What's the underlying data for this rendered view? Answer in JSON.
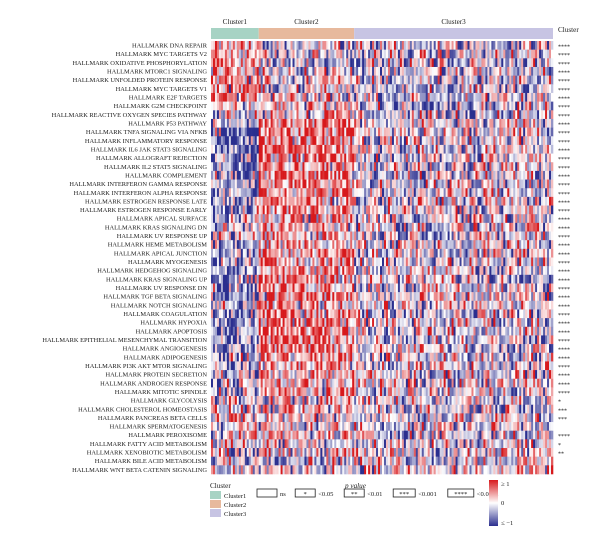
{
  "chart_data": {
    "type": "heatmap",
    "title": "",
    "clusters": [
      {
        "name": "Cluster1",
        "color": "#a7d3c4",
        "samples": 24
      },
      {
        "name": "Cluster2",
        "color": "#e7b99d",
        "samples": 48
      },
      {
        "name": "Cluster3",
        "color": "#c7c4e3",
        "samples": 100
      }
    ],
    "rows": [
      {
        "pathway": "HALLMARK DNA REPAIR",
        "sig": "****",
        "pattern": [
          0.45,
          -0.15,
          -0.15
        ]
      },
      {
        "pathway": "HALLMARK MYC TARGETS V2",
        "sig": "****",
        "pattern": [
          0.45,
          -0.1,
          -0.15
        ]
      },
      {
        "pathway": "HALLMARK OXIDATIVE PHOSPHORYLATION",
        "sig": "****",
        "pattern": [
          0.5,
          -0.2,
          -0.15
        ]
      },
      {
        "pathway": "HALLMARK MTORC1 SIGNALING",
        "sig": "****",
        "pattern": [
          0.3,
          0.1,
          -0.15
        ]
      },
      {
        "pathway": "HALLMARK UNFOLDED PROTEIN RESPONSE",
        "sig": "****",
        "pattern": [
          0.35,
          0.05,
          -0.15
        ]
      },
      {
        "pathway": "HALLMARK MYC TARGETS V1",
        "sig": "****",
        "pattern": [
          0.4,
          -0.05,
          -0.15
        ]
      },
      {
        "pathway": "HALLMARK E2F TARGETS",
        "sig": "****",
        "pattern": [
          0.35,
          0.05,
          -0.15
        ]
      },
      {
        "pathway": "HALLMARK G2M CHECKPOINT",
        "sig": "****",
        "pattern": [
          0.3,
          0.05,
          -0.15
        ]
      },
      {
        "pathway": "HALLMARK REACTIVE OXYGEN SPECIES PATHWAY",
        "sig": "****",
        "pattern": [
          0.1,
          0.25,
          -0.15
        ]
      },
      {
        "pathway": "HALLMARK P53 PATHWAY",
        "sig": "****",
        "pattern": [
          -0.3,
          0.45,
          -0.1
        ]
      },
      {
        "pathway": "HALLMARK TNFA SIGNALING VIA NFKB",
        "sig": "****",
        "pattern": [
          -0.55,
          0.6,
          -0.05
        ]
      },
      {
        "pathway": "HALLMARK INFLAMMATORY RESPONSE",
        "sig": "****",
        "pattern": [
          -0.6,
          0.65,
          -0.05
        ]
      },
      {
        "pathway": "HALLMARK IL6 JAK STAT3 SIGNALING",
        "sig": "****",
        "pattern": [
          -0.55,
          0.6,
          -0.05
        ]
      },
      {
        "pathway": "HALLMARK ALLOGRAFT REJECTION",
        "sig": "****",
        "pattern": [
          -0.5,
          0.55,
          -0.05
        ]
      },
      {
        "pathway": "HALLMARK IL2 STAT5 SIGNALING",
        "sig": "****",
        "pattern": [
          -0.5,
          0.55,
          -0.05
        ]
      },
      {
        "pathway": "HALLMARK COMPLEMENT",
        "sig": "****",
        "pattern": [
          -0.5,
          0.55,
          -0.05
        ]
      },
      {
        "pathway": "HALLMARK INTERFERON GAMMA RESPONSE",
        "sig": "****",
        "pattern": [
          -0.45,
          0.5,
          -0.05
        ]
      },
      {
        "pathway": "HALLMARK INTERFERON ALPHA RESPONSE",
        "sig": "****",
        "pattern": [
          -0.35,
          0.45,
          -0.05
        ]
      },
      {
        "pathway": "HALLMARK ESTROGEN RESPONSE LATE",
        "sig": "****",
        "pattern": [
          -0.3,
          0.4,
          -0.05
        ]
      },
      {
        "pathway": "HALLMARK ESTROGEN RESPONSE EARLY",
        "sig": "****",
        "pattern": [
          -0.35,
          0.4,
          -0.05
        ]
      },
      {
        "pathway": "HALLMARK APICAL SURFACE",
        "sig": "****",
        "pattern": [
          -0.3,
          0.35,
          -0.05
        ]
      },
      {
        "pathway": "HALLMARK KRAS SIGNALING DN",
        "sig": "****",
        "pattern": [
          -0.2,
          0.3,
          -0.05
        ]
      },
      {
        "pathway": "HALLMARK UV RESPONSE UP",
        "sig": "****",
        "pattern": [
          -0.1,
          0.35,
          -0.1
        ]
      },
      {
        "pathway": "HALLMARK HEME METABOLISM",
        "sig": "****",
        "pattern": [
          -0.3,
          0.35,
          -0.05
        ]
      },
      {
        "pathway": "HALLMARK APICAL JUNCTION",
        "sig": "****",
        "pattern": [
          -0.4,
          0.5,
          -0.05
        ]
      },
      {
        "pathway": "HALLMARK MYOGENESIS",
        "sig": "****",
        "pattern": [
          -0.35,
          0.45,
          -0.05
        ]
      },
      {
        "pathway": "HALLMARK HEDGEHOG SIGNALING",
        "sig": "****",
        "pattern": [
          -0.3,
          0.4,
          -0.05
        ]
      },
      {
        "pathway": "HALLMARK KRAS SIGNALING UP",
        "sig": "****",
        "pattern": [
          -0.5,
          0.55,
          -0.05
        ]
      },
      {
        "pathway": "HALLMARK UV RESPONSE DN",
        "sig": "****",
        "pattern": [
          -0.45,
          0.5,
          -0.05
        ]
      },
      {
        "pathway": "HALLMARK TGF BETA SIGNALING",
        "sig": "****",
        "pattern": [
          -0.4,
          0.5,
          -0.05
        ]
      },
      {
        "pathway": "HALLMARK NOTCH SIGNALING",
        "sig": "****",
        "pattern": [
          -0.3,
          0.4,
          -0.05
        ]
      },
      {
        "pathway": "HALLMARK COAGULATION",
        "sig": "****",
        "pattern": [
          -0.5,
          0.55,
          -0.05
        ]
      },
      {
        "pathway": "HALLMARK HYPOXIA",
        "sig": "****",
        "pattern": [
          -0.45,
          0.55,
          -0.05
        ]
      },
      {
        "pathway": "HALLMARK APOPTOSIS",
        "sig": "****",
        "pattern": [
          -0.45,
          0.55,
          -0.05
        ]
      },
      {
        "pathway": "HALLMARK EPITHELIAL MESENCHYMAL TRANSITION",
        "sig": "****",
        "pattern": [
          -0.55,
          0.6,
          -0.05
        ]
      },
      {
        "pathway": "HALLMARK ANGIOGENESIS",
        "sig": "****",
        "pattern": [
          -0.5,
          0.55,
          -0.05
        ]
      },
      {
        "pathway": "HALLMARK ADIPOGENESIS",
        "sig": "****",
        "pattern": [
          -0.2,
          0.35,
          -0.05
        ]
      },
      {
        "pathway": "HALLMARK PI3K AKT MTOR SIGNALING",
        "sig": "****",
        "pattern": [
          -0.3,
          0.4,
          -0.05
        ]
      },
      {
        "pathway": "HALLMARK PROTEIN SECRETION",
        "sig": "****",
        "pattern": [
          -0.25,
          0.35,
          -0.05
        ]
      },
      {
        "pathway": "HALLMARK ANDROGEN RESPONSE",
        "sig": "****",
        "pattern": [
          -0.2,
          0.3,
          -0.05
        ]
      },
      {
        "pathway": "HALLMARK MITOTIC SPINDLE",
        "sig": "****",
        "pattern": [
          -0.15,
          0.3,
          -0.05
        ]
      },
      {
        "pathway": "HALLMARK GLYCOLYSIS",
        "sig": "*",
        "pattern": [
          -0.05,
          0.1,
          0.0
        ]
      },
      {
        "pathway": "HALLMARK CHOLESTEROL HOMEOSTASIS",
        "sig": "***",
        "pattern": [
          0.0,
          0.1,
          -0.05
        ]
      },
      {
        "pathway": "HALLMARK PANCREAS BETA CELLS",
        "sig": "***",
        "pattern": [
          0.05,
          0.1,
          -0.05
        ]
      },
      {
        "pathway": "HALLMARK SPERMATOGENESIS",
        "sig": "",
        "pattern": [
          0.0,
          0.0,
          0.0
        ]
      },
      {
        "pathway": "HALLMARK PEROXISOME",
        "sig": "****",
        "pattern": [
          0.1,
          0.15,
          -0.1
        ]
      },
      {
        "pathway": "HALLMARK FATTY ACID METABOLISM",
        "sig": "*",
        "pattern": [
          0.1,
          0.05,
          -0.05
        ]
      },
      {
        "pathway": "HALLMARK XENOBIOTIC METABOLISM",
        "sig": "**",
        "pattern": [
          0.05,
          0.1,
          -0.05
        ]
      },
      {
        "pathway": "HALLMARK BILE ACID METABOLISM",
        "sig": "",
        "pattern": [
          0.0,
          0.0,
          0.0
        ]
      },
      {
        "pathway": "HALLMARK WNT BETA CATENIN SIGNALING",
        "sig": "",
        "pattern": [
          0.0,
          0.05,
          0.0
        ]
      }
    ],
    "significance_header": "Cluster",
    "colorscale": {
      "low": "#2b2f8f",
      "mid": "#ffffff",
      "high": "#d7191c"
    },
    "colorbar_labels": [
      "≥ 1",
      "0",
      "≤ −1"
    ],
    "legend": {
      "cluster_title": "Cluster",
      "cluster_items": [
        "Cluster1",
        "Cluster2",
        "Cluster3"
      ],
      "pvalue_title": "p value",
      "pvalue_items": [
        {
          "symbol": "",
          "label": "ns"
        },
        {
          "symbol": "*",
          "label": "<0.05"
        },
        {
          "symbol": "**",
          "label": "<0.01"
        },
        {
          "symbol": "***",
          "label": "<0.001"
        },
        {
          "symbol": "****",
          "label": "<0.0001"
        }
      ]
    }
  }
}
